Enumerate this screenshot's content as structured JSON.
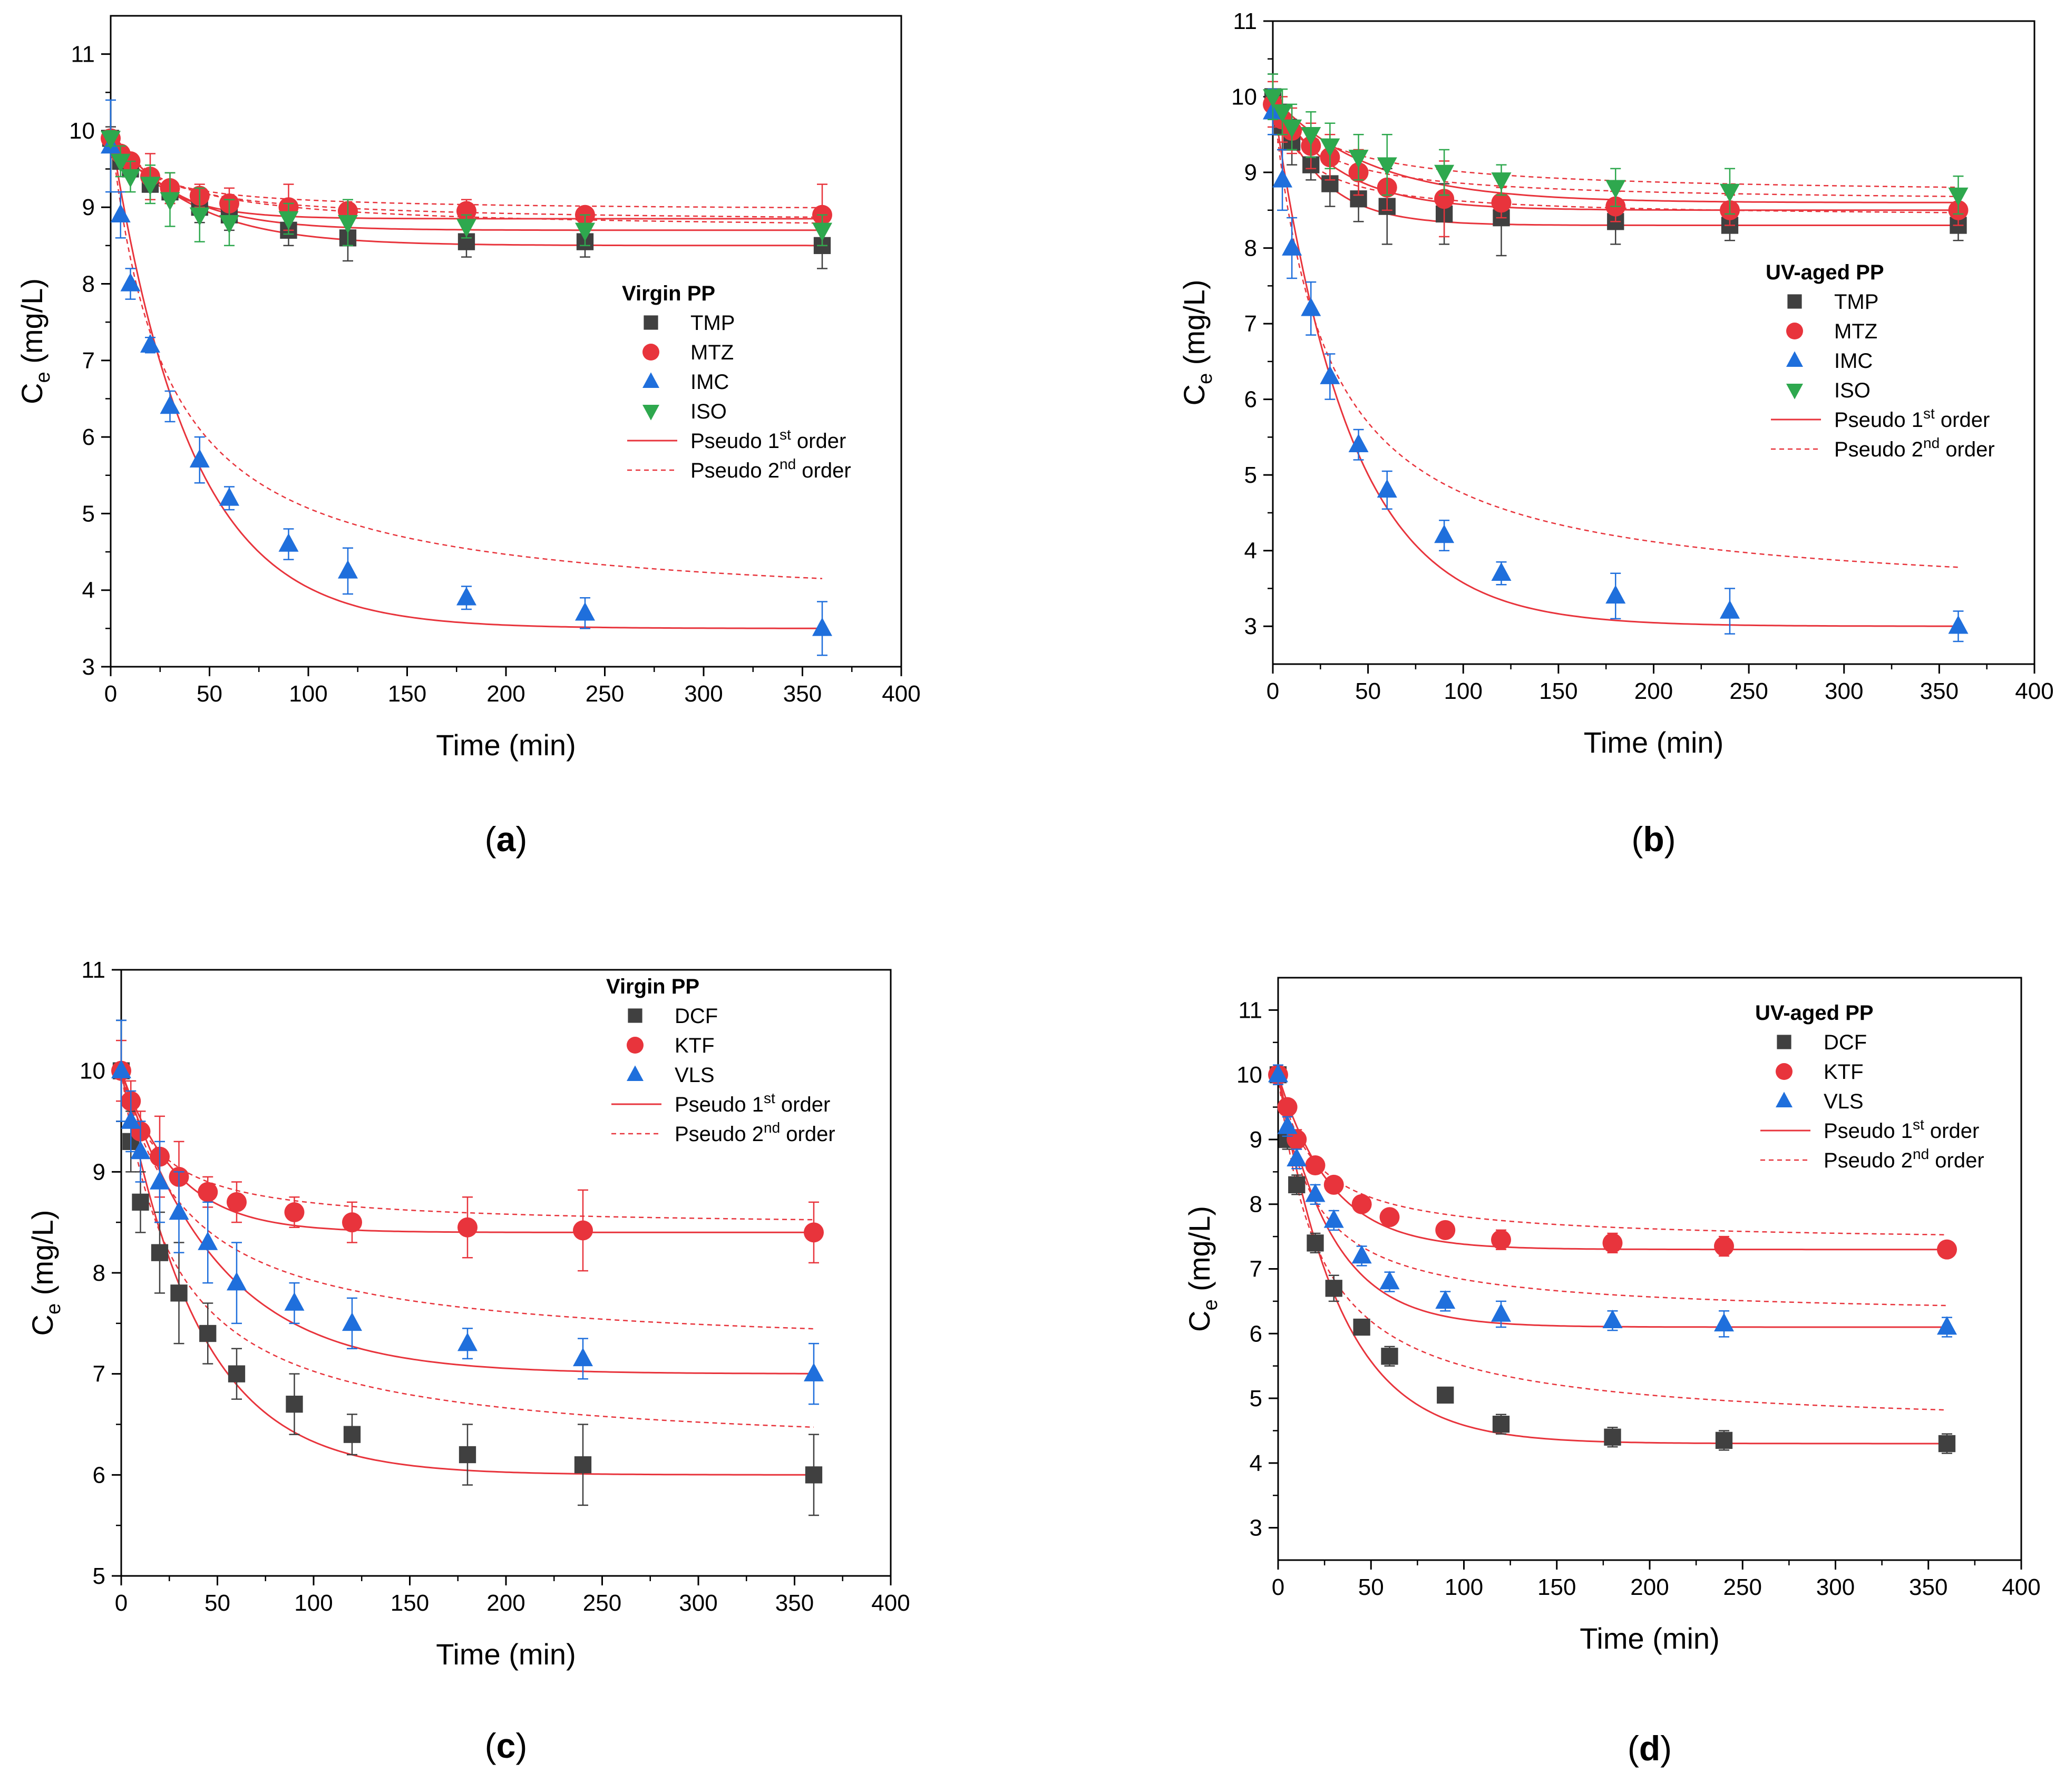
{
  "legend_line_labels": {
    "pfo_prefix": "Pseudo 1",
    "pfo_sup": "st",
    "pfo_suffix": " order",
    "pso_prefix": "Pseudo 2",
    "pso_sup": "nd",
    "pso_suffix": " order"
  },
  "colors": {
    "TMP": "#404040",
    "MTZ": "#e8343c",
    "IMC": "#1f6fdc",
    "ISO": "#2ea84e",
    "DCF": "#404040",
    "KTF": "#e8343c",
    "VLS": "#1f6fdc",
    "fit": "#e8343c",
    "axis": "#000000"
  },
  "chart_data": [
    {
      "type": "scatter",
      "panel": "(a)",
      "panel_letter": "a",
      "legend_title": "Virgin PP",
      "xlabel": "Time (min)",
      "ylabel_main": "C",
      "ylabel_sub": "e",
      "ylabel_unit": " (mg/L)",
      "xlim": [
        0,
        400
      ],
      "ylim": [
        3,
        11.5
      ],
      "xticks": [
        0,
        50,
        100,
        150,
        200,
        250,
        300,
        350,
        400
      ],
      "yticks": [
        3,
        4,
        5,
        6,
        7,
        8,
        9,
        10,
        11
      ],
      "series": [
        {
          "name": "TMP",
          "marker": "square",
          "x": [
            0,
            5,
            10,
            20,
            30,
            45,
            60,
            90,
            120,
            180,
            240,
            360
          ],
          "y": [
            9.9,
            9.6,
            9.5,
            9.3,
            9.2,
            9.0,
            8.9,
            8.7,
            8.6,
            8.55,
            8.55,
            8.5
          ],
          "err": [
            0.15,
            0.1,
            0.1,
            0.2,
            0.15,
            0.2,
            0.2,
            0.2,
            0.3,
            0.2,
            0.2,
            0.3
          ],
          "pfo": {
            "qe": 8.5,
            "k": 0.025
          },
          "pso": {
            "qe": 8.7,
            "k": 0.02
          }
        },
        {
          "name": "MTZ",
          "marker": "circle",
          "x": [
            0,
            5,
            10,
            20,
            30,
            45,
            60,
            90,
            120,
            180,
            240,
            360
          ],
          "y": [
            9.9,
            9.7,
            9.6,
            9.4,
            9.25,
            9.15,
            9.05,
            9.0,
            8.95,
            8.95,
            8.9,
            8.9
          ],
          "err": [
            0.1,
            0.1,
            0.1,
            0.3,
            0.2,
            0.15,
            0.2,
            0.3,
            0.15,
            0.15,
            0.1,
            0.4
          ],
          "pfo": {
            "qe": 8.85,
            "k": 0.04
          },
          "pso": {
            "qe": 8.95,
            "k": 0.035
          }
        },
        {
          "name": "IMC",
          "marker": "triangle-up",
          "x": [
            0,
            5,
            10,
            20,
            30,
            45,
            60,
            90,
            120,
            180,
            240,
            360
          ],
          "y": [
            9.8,
            8.9,
            8.0,
            7.2,
            6.4,
            5.7,
            5.2,
            4.6,
            4.25,
            3.9,
            3.7,
            3.5
          ],
          "err": [
            0.6,
            0.3,
            0.2,
            0.1,
            0.2,
            0.3,
            0.15,
            0.2,
            0.3,
            0.15,
            0.2,
            0.35
          ],
          "pfo": {
            "qe": 3.5,
            "k": 0.025
          },
          "pso": {
            "qe": 3.7,
            "k": 0.02
          }
        },
        {
          "name": "ISO",
          "marker": "triangle-down",
          "x": [
            0,
            5,
            10,
            20,
            30,
            45,
            60,
            90,
            120,
            180,
            240,
            360
          ],
          "y": [
            9.9,
            9.6,
            9.4,
            9.3,
            9.1,
            8.9,
            8.8,
            8.85,
            8.8,
            8.75,
            8.7,
            8.7
          ],
          "err": [
            0.1,
            0.2,
            0.2,
            0.25,
            0.35,
            0.35,
            0.3,
            0.2,
            0.3,
            0.15,
            0.2,
            0.2
          ],
          "pfo": {
            "qe": 8.7,
            "k": 0.03
          },
          "pso": {
            "qe": 8.8,
            "k": 0.025
          }
        }
      ]
    },
    {
      "type": "scatter",
      "panel": "(b)",
      "panel_letter": "b",
      "legend_title": "UV-aged PP",
      "xlabel": "Time (min)",
      "ylabel_main": "C",
      "ylabel_sub": "e",
      "ylabel_unit": " (mg/L)",
      "xlim": [
        0,
        400
      ],
      "ylim": [
        2.5,
        11
      ],
      "xticks": [
        0,
        50,
        100,
        150,
        200,
        250,
        300,
        350,
        400
      ],
      "yticks": [
        3,
        4,
        5,
        6,
        7,
        8,
        9,
        10,
        11
      ],
      "series": [
        {
          "name": "TMP",
          "marker": "square",
          "x": [
            0,
            5,
            10,
            20,
            30,
            45,
            60,
            90,
            120,
            180,
            240,
            360
          ],
          "y": [
            10.0,
            9.6,
            9.4,
            9.1,
            8.85,
            8.65,
            8.55,
            8.45,
            8.4,
            8.35,
            8.3,
            8.3
          ],
          "err": [
            0.3,
            0.3,
            0.3,
            0.2,
            0.3,
            0.3,
            0.5,
            0.4,
            0.5,
            0.3,
            0.2,
            0.2
          ],
          "pfo": {
            "qe": 8.3,
            "k": 0.04
          },
          "pso": {
            "qe": 8.4,
            "k": 0.035
          }
        },
        {
          "name": "MTZ",
          "marker": "circle",
          "x": [
            0,
            5,
            10,
            20,
            30,
            45,
            60,
            90,
            120,
            180,
            240,
            360
          ],
          "y": [
            9.9,
            9.7,
            9.55,
            9.35,
            9.2,
            9.0,
            8.8,
            8.65,
            8.6,
            8.55,
            8.5,
            8.5
          ],
          "err": [
            0.3,
            0.3,
            0.3,
            0.3,
            0.3,
            0.3,
            0.3,
            0.5,
            0.2,
            0.2,
            0.2,
            0.2
          ],
          "pfo": {
            "qe": 8.5,
            "k": 0.03
          },
          "pso": {
            "qe": 8.6,
            "k": 0.025
          }
        },
        {
          "name": "IMC",
          "marker": "triangle-up",
          "x": [
            0,
            5,
            10,
            20,
            30,
            45,
            60,
            90,
            120,
            180,
            240,
            360
          ],
          "y": [
            9.8,
            8.9,
            8.0,
            7.2,
            6.3,
            5.4,
            4.8,
            4.2,
            3.7,
            3.4,
            3.2,
            3.0
          ],
          "err": [
            0.3,
            0.4,
            0.4,
            0.35,
            0.3,
            0.2,
            0.25,
            0.2,
            0.15,
            0.3,
            0.3,
            0.2
          ],
          "pfo": {
            "qe": 3.0,
            "k": 0.025
          },
          "pso": {
            "qe": 3.3,
            "k": 0.02
          }
        },
        {
          "name": "ISO",
          "marker": "triangle-down",
          "x": [
            0,
            5,
            10,
            20,
            30,
            45,
            60,
            90,
            120,
            180,
            240,
            360
          ],
          "y": [
            10.0,
            9.8,
            9.6,
            9.5,
            9.35,
            9.2,
            9.1,
            9.0,
            8.9,
            8.8,
            8.75,
            8.7
          ],
          "err": [
            0.3,
            0.3,
            0.3,
            0.3,
            0.3,
            0.3,
            0.4,
            0.3,
            0.2,
            0.25,
            0.3,
            0.25
          ],
          "pfo": {
            "qe": 8.6,
            "k": 0.02
          },
          "pso": {
            "qe": 8.7,
            "k": 0.018
          }
        }
      ]
    },
    {
      "type": "scatter",
      "panel": "(c)",
      "panel_letter": "c",
      "legend_title": "Virgin PP",
      "xlabel": "Time (min)",
      "ylabel_main": "C",
      "ylabel_sub": "e",
      "ylabel_unit": " (mg/L)",
      "xlim": [
        0,
        400
      ],
      "ylim": [
        5,
        11
      ],
      "xticks": [
        0,
        50,
        100,
        150,
        200,
        250,
        300,
        350,
        400
      ],
      "yticks": [
        5,
        6,
        7,
        8,
        9,
        10,
        11
      ],
      "series": [
        {
          "name": "DCF",
          "marker": "square",
          "x": [
            0,
            5,
            10,
            20,
            30,
            45,
            60,
            90,
            120,
            180,
            240,
            360
          ],
          "y": [
            10.0,
            9.3,
            8.7,
            8.2,
            7.8,
            7.4,
            7.0,
            6.7,
            6.4,
            6.2,
            6.1,
            6.0
          ],
          "err": [
            0.5,
            0.3,
            0.3,
            0.4,
            0.5,
            0.3,
            0.25,
            0.3,
            0.2,
            0.3,
            0.4,
            0.4
          ],
          "pfo": {
            "qe": 6.0,
            "k": 0.025
          },
          "pso": {
            "qe": 6.2,
            "k": 0.02
          }
        },
        {
          "name": "KTF",
          "marker": "circle",
          "x": [
            0,
            5,
            10,
            20,
            30,
            45,
            60,
            90,
            120,
            180,
            240,
            360
          ],
          "y": [
            10.0,
            9.7,
            9.4,
            9.15,
            8.95,
            8.8,
            8.7,
            8.6,
            8.5,
            8.45,
            8.42,
            8.4
          ],
          "err": [
            0.3,
            0.2,
            0.2,
            0.4,
            0.35,
            0.15,
            0.2,
            0.15,
            0.2,
            0.3,
            0.4,
            0.3
          ],
          "pfo": {
            "qe": 8.4,
            "k": 0.035
          },
          "pso": {
            "qe": 8.45,
            "k": 0.03
          }
        },
        {
          "name": "VLS",
          "marker": "triangle-up",
          "x": [
            0,
            5,
            10,
            20,
            30,
            45,
            60,
            90,
            120,
            180,
            240,
            360
          ],
          "y": [
            10.0,
            9.5,
            9.2,
            8.9,
            8.6,
            8.3,
            7.9,
            7.7,
            7.5,
            7.3,
            7.15,
            7.0
          ],
          "err": [
            0.5,
            0.3,
            0.3,
            0.4,
            0.4,
            0.4,
            0.4,
            0.2,
            0.25,
            0.15,
            0.2,
            0.3
          ],
          "pfo": {
            "qe": 7.0,
            "k": 0.02
          },
          "pso": {
            "qe": 7.2,
            "k": 0.016
          }
        }
      ]
    },
    {
      "type": "scatter",
      "panel": "(d)",
      "panel_letter": "d",
      "legend_title": "UV-aged PP",
      "xlabel": "Time (min)",
      "ylabel_main": "C",
      "ylabel_sub": "e",
      "ylabel_unit": " (mg/L)",
      "xlim": [
        0,
        400
      ],
      "ylim": [
        2.5,
        11.5
      ],
      "xticks": [
        0,
        50,
        100,
        150,
        200,
        250,
        300,
        350,
        400
      ],
      "yticks": [
        3,
        4,
        5,
        6,
        7,
        8,
        9,
        10,
        11
      ],
      "series": [
        {
          "name": "DCF",
          "marker": "square",
          "x": [
            0,
            5,
            10,
            20,
            30,
            45,
            60,
            90,
            120,
            180,
            240,
            360
          ],
          "y": [
            10.0,
            9.0,
            8.3,
            7.4,
            6.7,
            6.1,
            5.65,
            5.05,
            4.6,
            4.4,
            4.35,
            4.3
          ],
          "err": [
            0.15,
            0.15,
            0.15,
            0.15,
            0.2,
            0.1,
            0.15,
            0.1,
            0.15,
            0.15,
            0.15,
            0.15
          ],
          "pfo": {
            "qe": 4.3,
            "k": 0.03
          },
          "pso": {
            "qe": 4.5,
            "k": 0.025
          }
        },
        {
          "name": "KTF",
          "marker": "circle",
          "x": [
            0,
            5,
            10,
            20,
            30,
            45,
            60,
            90,
            120,
            180,
            240,
            360
          ],
          "y": [
            10.0,
            9.5,
            9.0,
            8.6,
            8.3,
            8.0,
            7.8,
            7.6,
            7.45,
            7.4,
            7.35,
            7.3
          ],
          "err": [
            0.1,
            0.1,
            0.15,
            0.1,
            0.1,
            0.1,
            0.1,
            0.1,
            0.15,
            0.15,
            0.15,
            0.1
          ],
          "pfo": {
            "qe": 7.3,
            "k": 0.035
          },
          "pso": {
            "qe": 7.4,
            "k": 0.03
          }
        },
        {
          "name": "VLS",
          "marker": "triangle-up",
          "x": [
            0,
            5,
            10,
            20,
            30,
            45,
            60,
            90,
            120,
            180,
            240,
            360
          ],
          "y": [
            10.0,
            9.2,
            8.7,
            8.15,
            7.75,
            7.2,
            6.8,
            6.5,
            6.3,
            6.2,
            6.15,
            6.1
          ],
          "err": [
            0.15,
            0.15,
            0.15,
            0.15,
            0.15,
            0.15,
            0.15,
            0.15,
            0.2,
            0.15,
            0.2,
            0.15
          ],
          "pfo": {
            "qe": 6.1,
            "k": 0.035
          },
          "pso": {
            "qe": 6.25,
            "k": 0.03
          }
        }
      ]
    }
  ]
}
